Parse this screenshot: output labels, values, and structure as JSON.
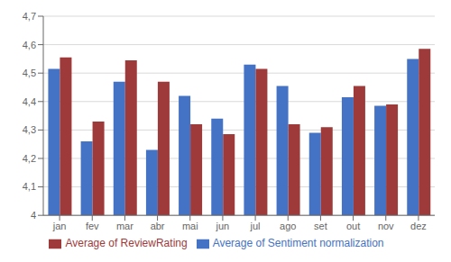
{
  "chart_data": {
    "type": "bar",
    "categories": [
      "jan",
      "fev",
      "mar",
      "abr",
      "mai",
      "jun",
      "jul",
      "ago",
      "set",
      "out",
      "nov",
      "dez"
    ],
    "series": [
      {
        "name": "Average of Sentiment normalization",
        "color": "#4472c4",
        "values": [
          4.515,
          4.26,
          4.47,
          4.23,
          4.42,
          4.34,
          4.53,
          4.455,
          4.29,
          4.415,
          4.385,
          4.55
        ]
      },
      {
        "name": "Average of ReviewRating",
        "color": "#9e3a3a",
        "values": [
          4.555,
          4.33,
          4.545,
          4.47,
          4.32,
          4.285,
          4.515,
          4.32,
          4.31,
          4.455,
          4.39,
          4.585
        ]
      }
    ],
    "ylim": [
      4.0,
      4.7
    ],
    "yticks": [
      4,
      {
        "value": 4.1,
        "label": "4,1"
      },
      {
        "value": 4.2,
        "label": "4,2"
      },
      {
        "value": 4.3,
        "label": "4,3"
      },
      {
        "value": 4.4,
        "label": "4,4"
      },
      {
        "value": 4.5,
        "label": "4,5"
      },
      {
        "value": 4.6,
        "label": "4,6"
      },
      {
        "value": 4.7,
        "label": "4,7"
      }
    ],
    "grid": true,
    "legend": "bottom"
  }
}
